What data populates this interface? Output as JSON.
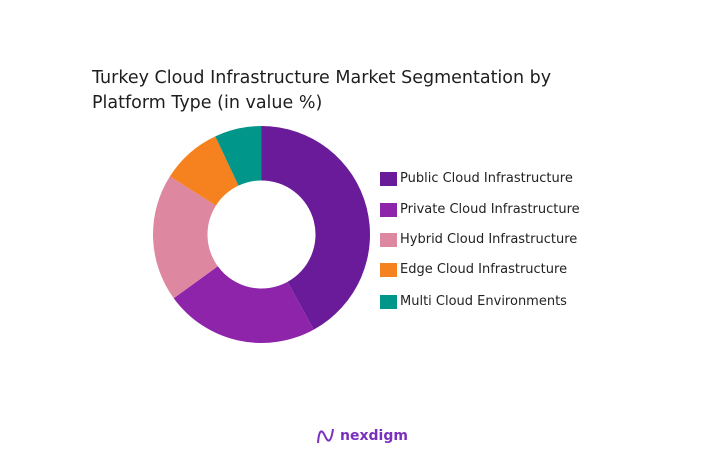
{
  "chart_data": {
    "type": "pie",
    "donut": true,
    "title": "Turkey Cloud Infrastructure Market Segmentation by Platform Type (in value %)",
    "categories": [
      "Public Cloud Infrastructure",
      "Private Cloud Infrastructure",
      "Hybrid Cloud Infrastructure",
      "Edge Cloud Infrastructure",
      "Multi Cloud Environments"
    ],
    "values": [
      42,
      23,
      19,
      9,
      7
    ],
    "colors": [
      "#6a1b9a",
      "#8e24aa",
      "#de87a0",
      "#f5821f",
      "#00968a"
    ],
    "legend_position": "right"
  },
  "logo": {
    "text": "nexdigm"
  }
}
